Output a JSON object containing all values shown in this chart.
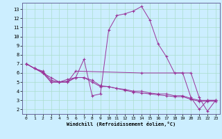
{
  "xlabel": "Windchill (Refroidissement éolien,°C)",
  "bg_color": "#cceeff",
  "grid_color": "#aaddcc",
  "line_color": "#993399",
  "xlim": [
    -0.5,
    23.5
  ],
  "ylim": [
    1.5,
    13.7
  ],
  "yticks": [
    2,
    3,
    4,
    5,
    6,
    7,
    8,
    9,
    10,
    11,
    12,
    13
  ],
  "xticks": [
    0,
    1,
    2,
    3,
    4,
    5,
    6,
    7,
    8,
    9,
    10,
    11,
    12,
    13,
    14,
    15,
    16,
    17,
    18,
    19,
    20,
    21,
    22,
    23
  ],
  "line1_x": [
    0,
    1,
    2,
    3,
    4,
    5,
    6,
    7,
    8,
    9,
    10,
    11,
    12,
    13,
    14,
    15,
    16,
    17,
    18,
    19,
    20,
    21,
    22,
    23
  ],
  "line1_y": [
    7.0,
    6.5,
    6.0,
    5.0,
    5.0,
    5.3,
    5.5,
    7.5,
    3.5,
    3.7,
    10.7,
    12.3,
    12.5,
    12.8,
    13.3,
    11.8,
    9.2,
    7.8,
    6.0,
    6.0,
    3.3,
    2.0,
    3.0,
    3.0
  ],
  "line2_x": [
    0,
    1,
    2,
    3,
    4,
    5,
    6,
    7,
    8,
    9,
    10,
    11,
    12,
    13,
    14,
    15,
    16,
    17,
    18,
    19,
    20,
    21,
    22,
    23
  ],
  "line2_y": [
    7.0,
    6.5,
    6.0,
    5.5,
    5.0,
    5.0,
    5.5,
    5.5,
    5.0,
    4.5,
    4.5,
    4.3,
    4.2,
    4.0,
    4.0,
    3.8,
    3.7,
    3.7,
    3.5,
    3.5,
    3.2,
    3.0,
    3.0,
    3.0
  ],
  "line3_x": [
    0,
    1,
    2,
    3,
    4,
    5,
    6,
    7,
    8,
    9,
    10,
    11,
    12,
    13,
    14,
    15,
    16,
    17,
    18,
    19,
    20,
    21,
    22,
    23
  ],
  "line3_y": [
    7.0,
    6.5,
    6.2,
    5.2,
    5.0,
    5.1,
    5.5,
    5.5,
    5.2,
    4.6,
    4.5,
    4.3,
    4.1,
    3.9,
    3.8,
    3.7,
    3.6,
    3.5,
    3.4,
    3.4,
    3.1,
    2.9,
    2.9,
    2.9
  ],
  "line4_x": [
    0,
    1,
    2,
    3,
    4,
    5,
    6,
    14,
    19,
    20,
    21,
    22,
    23
  ],
  "line4_y": [
    7.0,
    6.5,
    6.1,
    5.0,
    5.0,
    5.0,
    6.2,
    6.0,
    6.0,
    6.0,
    3.3,
    1.8,
    3.0
  ]
}
